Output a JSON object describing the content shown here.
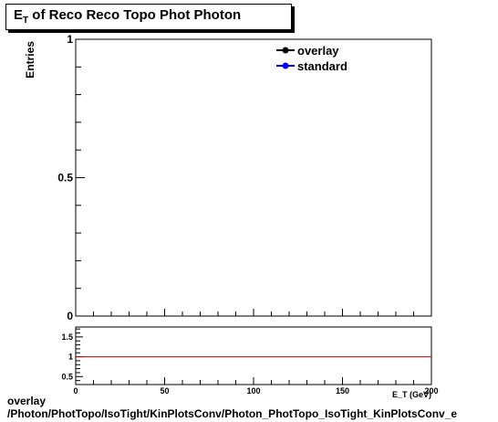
{
  "title": {
    "main": "E",
    "sub": "T",
    "rest": " of Reco Reco Topo Phot Photon"
  },
  "footer": {
    "line1": "overlay",
    "line2": "/Photon/PhotTopo/IsoTight/KinPlotsConv/Photon_PhotTopo_IsoTight_KinPlotsConv_e"
  },
  "colors": {
    "overlay": "#000000",
    "standard": "#0000ff",
    "ratio_line": "#cc0000"
  },
  "chart_data": [
    {
      "type": "line",
      "ylabel": "Entries",
      "ylim": [
        0,
        1
      ],
      "xlim": [
        0,
        200
      ],
      "yticks": [
        0,
        0.5,
        1
      ],
      "ytick_labels": [
        "0",
        "0.5",
        "1"
      ],
      "legend": {
        "placement": "top-right",
        "entries": [
          "overlay",
          "standard"
        ]
      },
      "series": [
        {
          "name": "overlay",
          "x": [],
          "y": []
        },
        {
          "name": "standard",
          "x": [],
          "y": []
        }
      ]
    },
    {
      "type": "line",
      "xlabel": "E_T (GeV)",
      "xlim": [
        0,
        200
      ],
      "ylim": [
        0.3,
        1.75
      ],
      "xticks": [
        0,
        50,
        100,
        150,
        200
      ],
      "xtick_labels": [
        "0",
        "50",
        "100",
        "150",
        "200"
      ],
      "yticks": [
        0.5,
        1,
        1.5
      ],
      "ytick_labels": [
        "0.5",
        "1",
        "1.5"
      ],
      "series": [
        {
          "x": [
            0,
            200
          ],
          "y": [
            1,
            1
          ]
        }
      ]
    }
  ]
}
